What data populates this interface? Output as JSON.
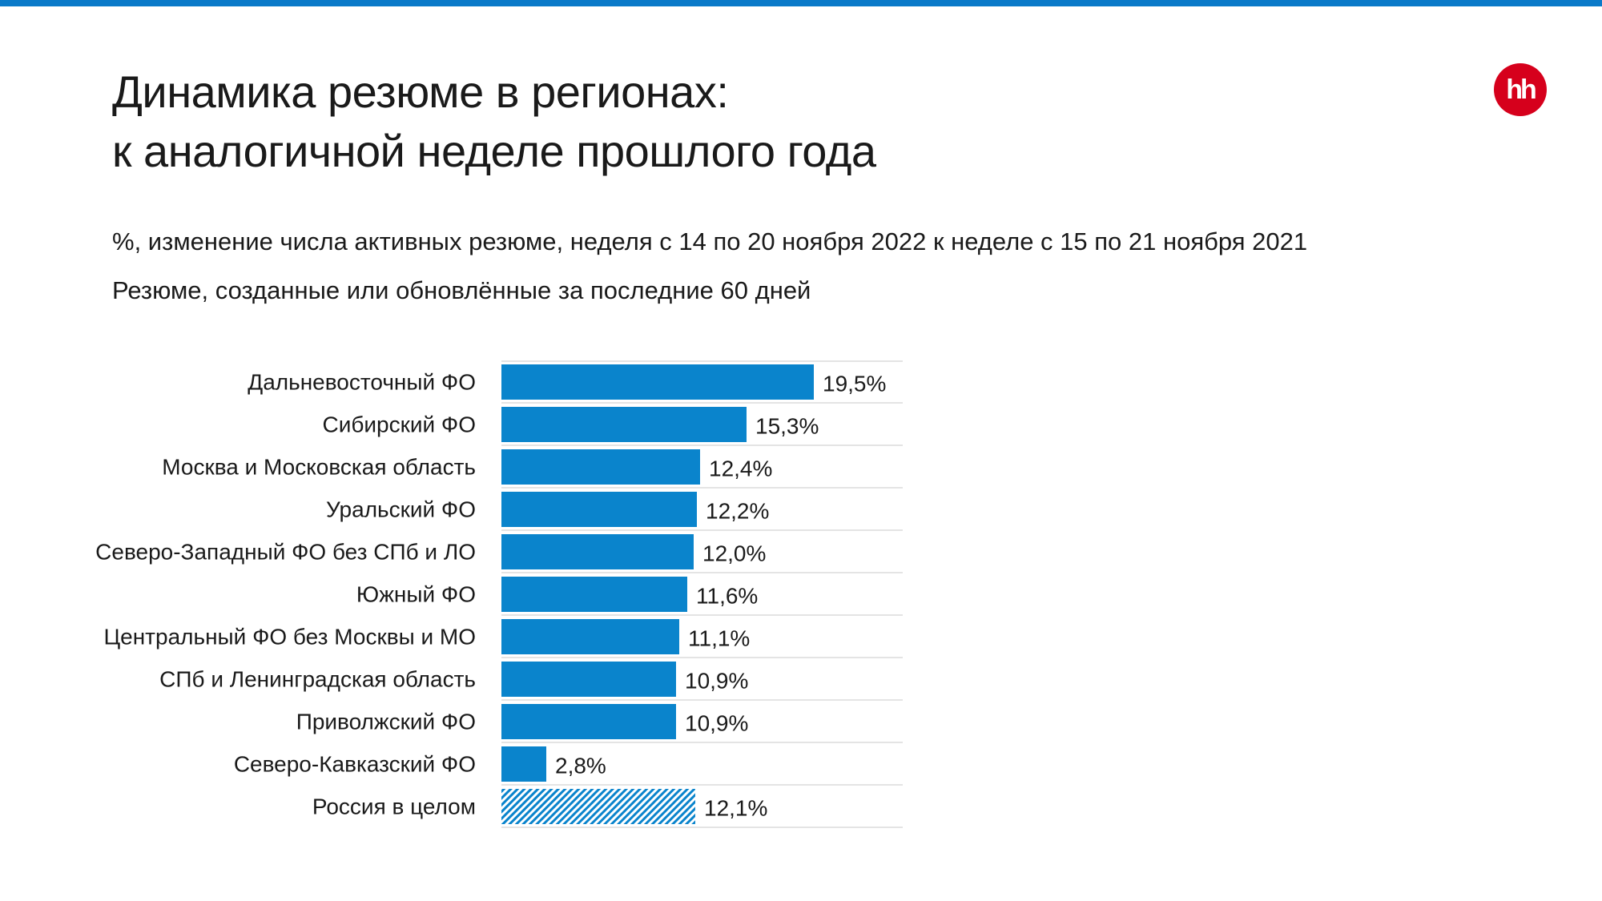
{
  "header": {
    "title_line1": "Динамика резюме в регионах:",
    "title_line2": "к аналогичной неделе прошлого года",
    "subtitle_line1": "%, изменение числа активных резюме, неделя с 14 по 20 ноября 2022 к неделе с 15 по 21 ноября 2021",
    "subtitle_line2": "Резюме, созданные или обновлённые за последние 60 дней",
    "logo_text": "hh"
  },
  "colors": {
    "accent": "#0a7ac9",
    "bar": "#0a84cc",
    "logo": "#d6001c",
    "gridline": "#dcdcdc"
  },
  "chart_data": {
    "type": "bar",
    "orientation": "horizontal",
    "unit": "%",
    "grid": true,
    "categories": [
      "Дальневосточный ФО",
      "Сибирский ФО",
      "Москва и Московская область",
      "Уральский ФО",
      "Северо-Западный ФО без СПб и ЛО",
      "Южный ФО",
      "Центральный ФО без Москвы и МО",
      "СПб и Ленинградская область",
      "Приволжский ФО",
      "Северо-Кавказский ФО",
      "Россия в целом"
    ],
    "values": [
      19.5,
      15.3,
      12.4,
      12.2,
      12.0,
      11.6,
      11.1,
      10.9,
      10.9,
      2.8,
      12.1
    ],
    "value_labels": [
      "19,5%",
      "15,3%",
      "12,4%",
      "12,2%",
      "12,0%",
      "11,6%",
      "11,1%",
      "10,9%",
      "10,9%",
      "2,8%",
      "12,1%"
    ],
    "highlighted": [
      false,
      false,
      false,
      false,
      false,
      false,
      false,
      false,
      false,
      false,
      true
    ],
    "xlim": [
      0,
      25
    ]
  }
}
